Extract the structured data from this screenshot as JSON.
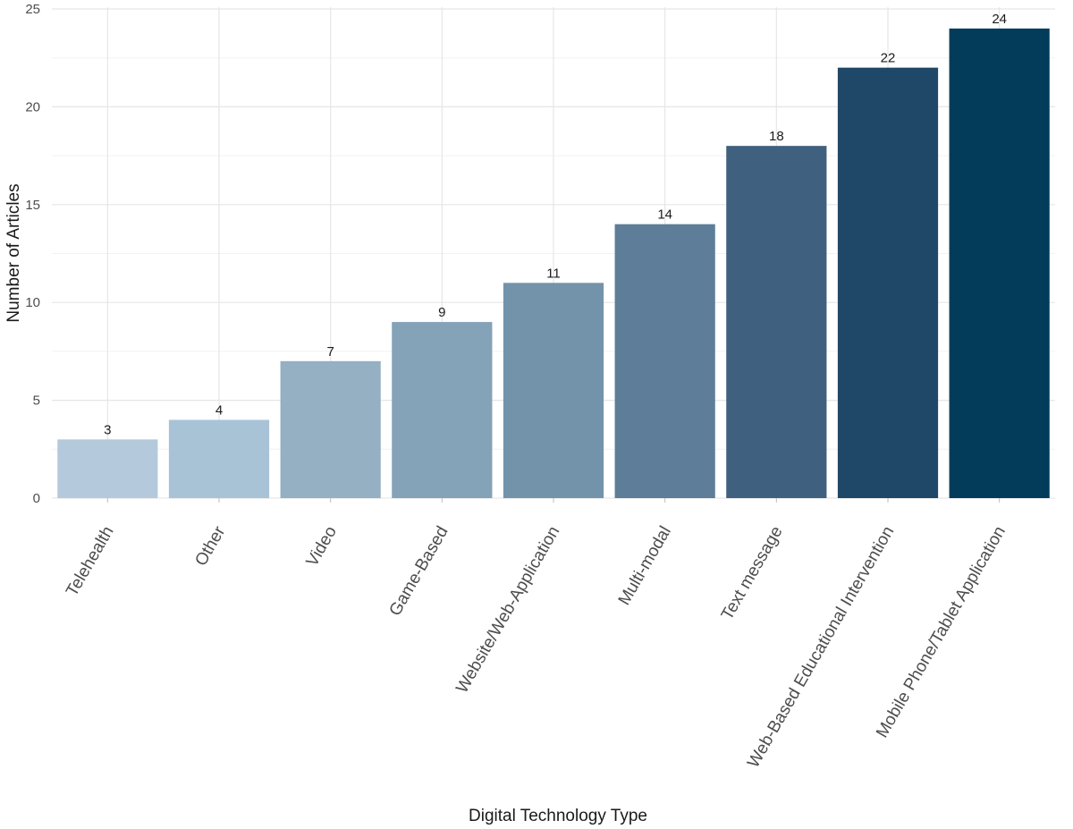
{
  "chart_data": {
    "type": "bar",
    "title": "",
    "xlabel": "Digital Technology Type",
    "ylabel": "Number of Articles",
    "categories": [
      "Telehealth",
      "Other",
      "Video",
      "Game-Based",
      "Website/Web-Application",
      "Multi-modal",
      "Text message",
      "Web-Based Educational Intervention",
      "Mobile Phone/Tablet Application"
    ],
    "values": [
      3,
      4,
      7,
      9,
      11,
      14,
      18,
      22,
      24
    ],
    "colors": [
      "#b4c9dc",
      "#a9c3d6",
      "#95afc3",
      "#84a2b8",
      "#7393aa",
      "#5d7d98",
      "#3f617f",
      "#1f4868",
      "#023c5a"
    ],
    "ylim": [
      0,
      25
    ],
    "yticks": [
      0,
      5,
      10,
      15,
      20,
      25
    ],
    "grid": true,
    "legend": "none"
  }
}
